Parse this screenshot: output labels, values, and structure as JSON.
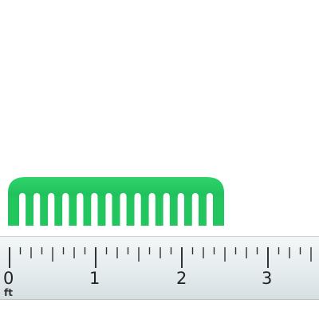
{
  "comb": {
    "color": "#22c55e",
    "teeth": 15
  },
  "ruler": {
    "unit_label": "ft",
    "numbers": [
      "0",
      "1",
      "2",
      "3"
    ],
    "minor_divisions_per_unit": 4
  }
}
